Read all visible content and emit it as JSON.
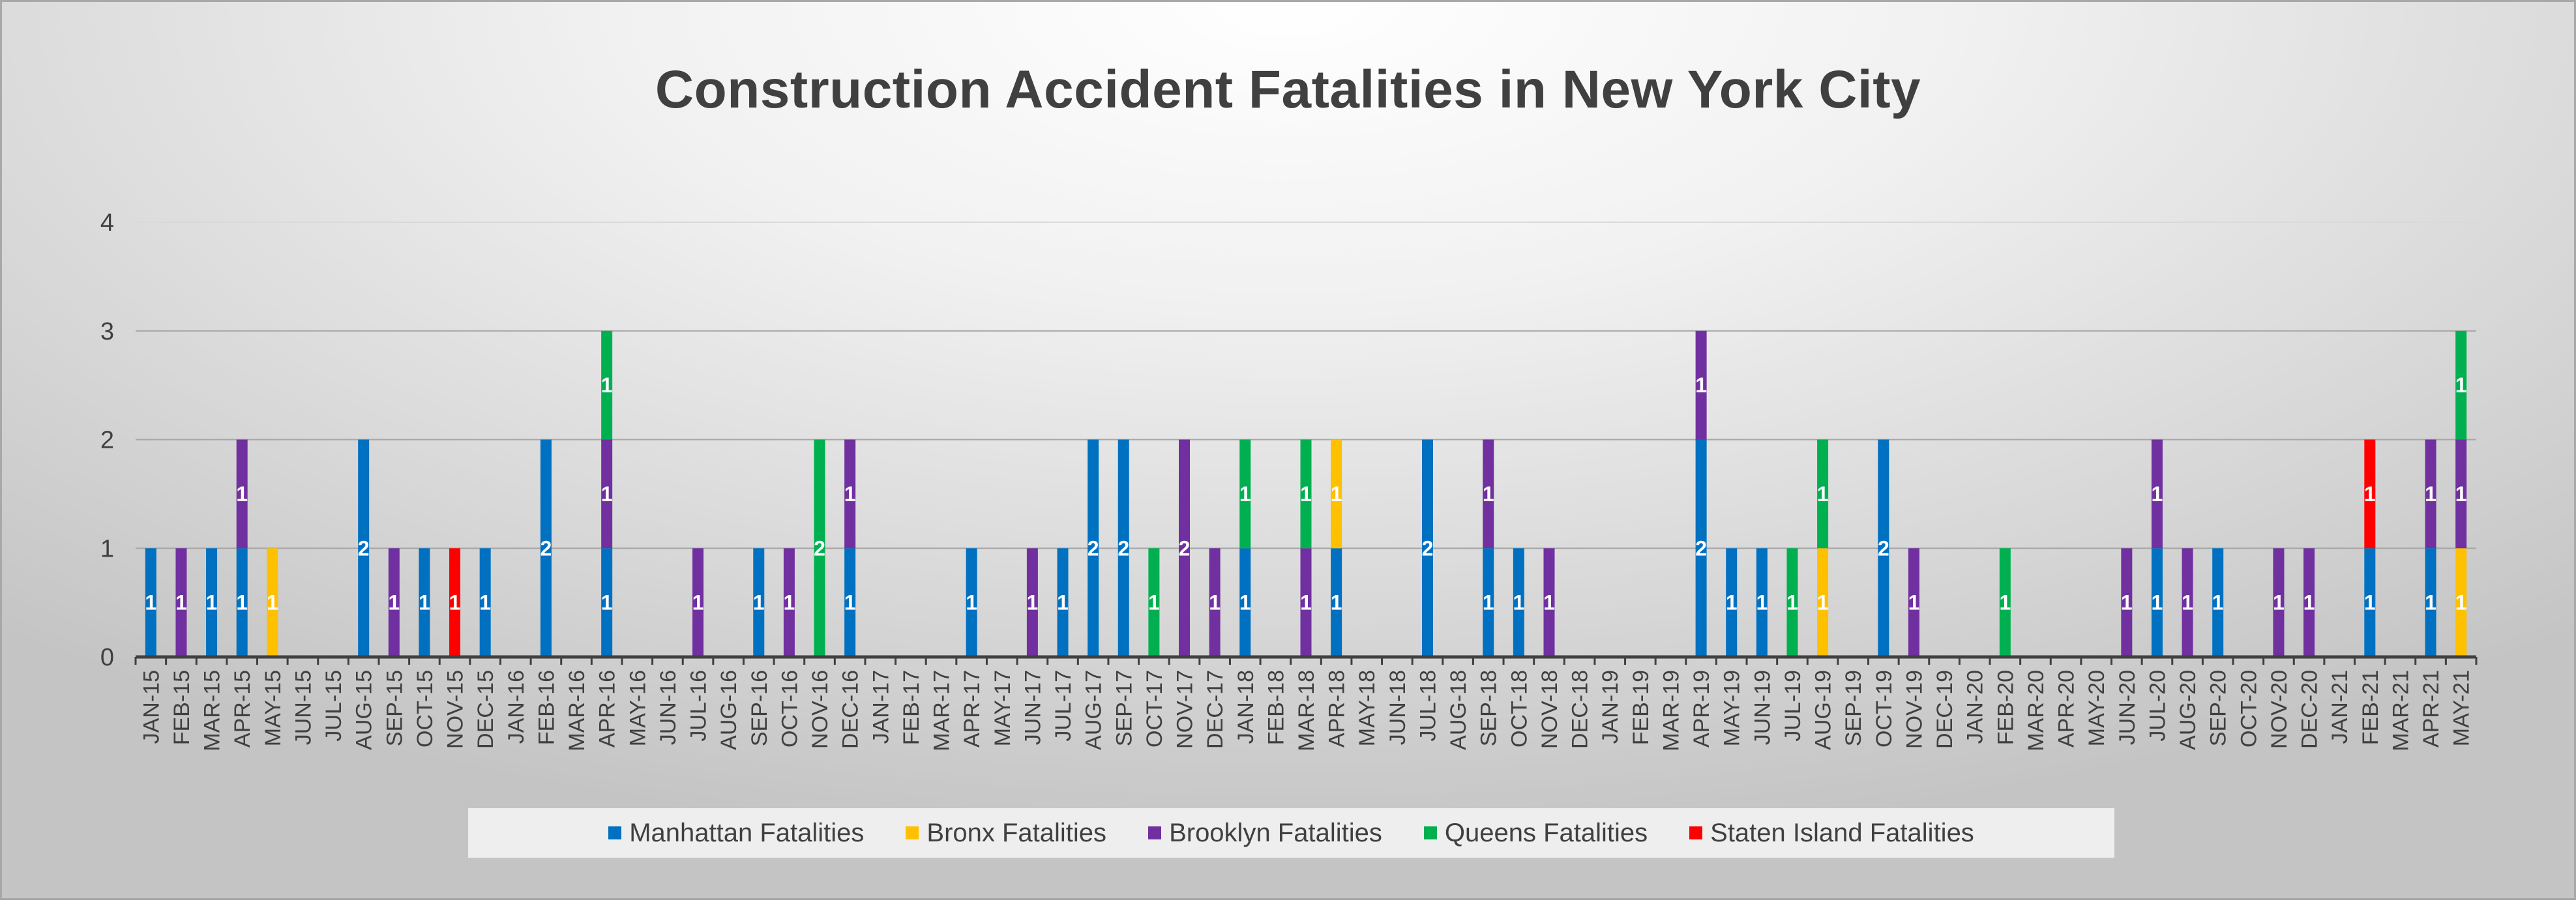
{
  "chart_data": {
    "type": "bar",
    "stacked": true,
    "title": "Construction Accident Fatalities in New York City",
    "xlabel": "",
    "ylabel": "",
    "ylim": [
      0,
      4
    ],
    "yticks": [
      0,
      1,
      2,
      3,
      4
    ],
    "grid": true,
    "legend_position": "bottom",
    "categories": [
      "JAN-15",
      "FEB-15",
      "MAR-15",
      "APR-15",
      "MAY-15",
      "JUN-15",
      "JUL-15",
      "AUG-15",
      "SEP-15",
      "OCT-15",
      "NOV-15",
      "DEC-15",
      "JAN-16",
      "FEB-16",
      "MAR-16",
      "APR-16",
      "MAY-16",
      "JUN-16",
      "JUL-16",
      "AUG-16",
      "SEP-16",
      "OCT-16",
      "NOV-16",
      "DEC-16",
      "JAN-17",
      "FEB-17",
      "MAR-17",
      "APR-17",
      "MAY-17",
      "JUN-17",
      "JUL-17",
      "AUG-17",
      "SEP-17",
      "OCT-17",
      "NOV-17",
      "DEC-17",
      "JAN-18",
      "FEB-18",
      "MAR-18",
      "APR-18",
      "MAY-18",
      "JUN-18",
      "JUL-18",
      "AUG-18",
      "SEP-18",
      "OCT-18",
      "NOV-18",
      "DEC-18",
      "JAN-19",
      "FEB-19",
      "MAR-19",
      "APR-19",
      "MAY-19",
      "JUN-19",
      "JUL-19",
      "AUG-19",
      "SEP-19",
      "OCT-19",
      "NOV-19",
      "DEC-19",
      "JAN-20",
      "FEB-20",
      "MAR-20",
      "APR-20",
      "MAY-20",
      "JUN-20",
      "JUL-20",
      "AUG-20",
      "SEP-20",
      "OCT-20",
      "NOV-20",
      "DEC-20",
      "JAN-21",
      "FEB-21",
      "MAR-21",
      "APR-21",
      "MAY-21"
    ],
    "series": [
      {
        "name": "Manhattan Fatalities",
        "color": "#0070C0",
        "values": [
          1,
          0,
          1,
          1,
          0,
          0,
          0,
          2,
          0,
          1,
          0,
          1,
          0,
          2,
          0,
          1,
          0,
          0,
          0,
          0,
          1,
          0,
          0,
          1,
          0,
          0,
          0,
          1,
          0,
          0,
          1,
          2,
          2,
          0,
          0,
          0,
          1,
          0,
          0,
          1,
          0,
          0,
          2,
          0,
          1,
          1,
          0,
          0,
          0,
          0,
          0,
          2,
          1,
          1,
          0,
          0,
          0,
          2,
          0,
          0,
          0,
          0,
          0,
          0,
          0,
          0,
          1,
          0,
          1,
          0,
          0,
          0,
          0,
          1,
          0,
          1,
          0
        ]
      },
      {
        "name": "Bronx Fatalities",
        "color": "#FFC000",
        "values": [
          0,
          0,
          0,
          0,
          1,
          0,
          0,
          0,
          0,
          0,
          0,
          0,
          0,
          0,
          0,
          0,
          0,
          0,
          0,
          0,
          0,
          0,
          0,
          0,
          0,
          0,
          0,
          0,
          0,
          0,
          0,
          0,
          0,
          0,
          0,
          0,
          0,
          0,
          0,
          1,
          0,
          0,
          0,
          0,
          0,
          0,
          0,
          0,
          0,
          0,
          0,
          0,
          0,
          0,
          0,
          1,
          0,
          0,
          0,
          0,
          0,
          0,
          0,
          0,
          0,
          0,
          0,
          0,
          0,
          0,
          0,
          0,
          0,
          0,
          0,
          0,
          1
        ]
      },
      {
        "name": "Brooklyn Fatalities",
        "color": "#7030A0",
        "values": [
          0,
          1,
          0,
          1,
          0,
          0,
          0,
          0,
          1,
          0,
          0,
          0,
          0,
          0,
          0,
          1,
          0,
          0,
          1,
          0,
          0,
          1,
          0,
          1,
          0,
          0,
          0,
          0,
          0,
          1,
          0,
          0,
          0,
          0,
          2,
          1,
          0,
          0,
          1,
          0,
          0,
          0,
          0,
          0,
          1,
          0,
          1,
          0,
          0,
          0,
          0,
          1,
          0,
          0,
          0,
          0,
          0,
          0,
          1,
          0,
          0,
          0,
          0,
          0,
          0,
          1,
          1,
          1,
          0,
          0,
          1,
          1,
          0,
          0,
          0,
          1,
          1
        ]
      },
      {
        "name": "Queens Fatalities",
        "color": "#00B050",
        "values": [
          0,
          0,
          0,
          0,
          0,
          0,
          0,
          0,
          0,
          0,
          0,
          0,
          0,
          0,
          0,
          1,
          0,
          0,
          0,
          0,
          0,
          0,
          2,
          0,
          0,
          0,
          0,
          0,
          0,
          0,
          0,
          0,
          0,
          1,
          0,
          0,
          1,
          0,
          1,
          0,
          0,
          0,
          0,
          0,
          0,
          0,
          0,
          0,
          0,
          0,
          0,
          0,
          0,
          0,
          1,
          1,
          0,
          0,
          0,
          0,
          0,
          1,
          0,
          0,
          0,
          0,
          0,
          0,
          0,
          0,
          0,
          0,
          0,
          0,
          0,
          0,
          1
        ]
      },
      {
        "name": "Staten Island Fatalities",
        "color": "#FF0000",
        "values": [
          0,
          0,
          0,
          0,
          0,
          0,
          0,
          0,
          0,
          0,
          1,
          0,
          0,
          0,
          0,
          0,
          0,
          0,
          0,
          0,
          0,
          0,
          0,
          0,
          0,
          0,
          0,
          0,
          0,
          0,
          0,
          0,
          0,
          0,
          0,
          0,
          0,
          0,
          0,
          0,
          0,
          0,
          0,
          0,
          0,
          0,
          0,
          0,
          0,
          0,
          0,
          0,
          0,
          0,
          0,
          0,
          0,
          0,
          0,
          0,
          0,
          0,
          0,
          0,
          0,
          0,
          0,
          0,
          0,
          0,
          0,
          0,
          0,
          1,
          0,
          0,
          0
        ]
      }
    ]
  }
}
